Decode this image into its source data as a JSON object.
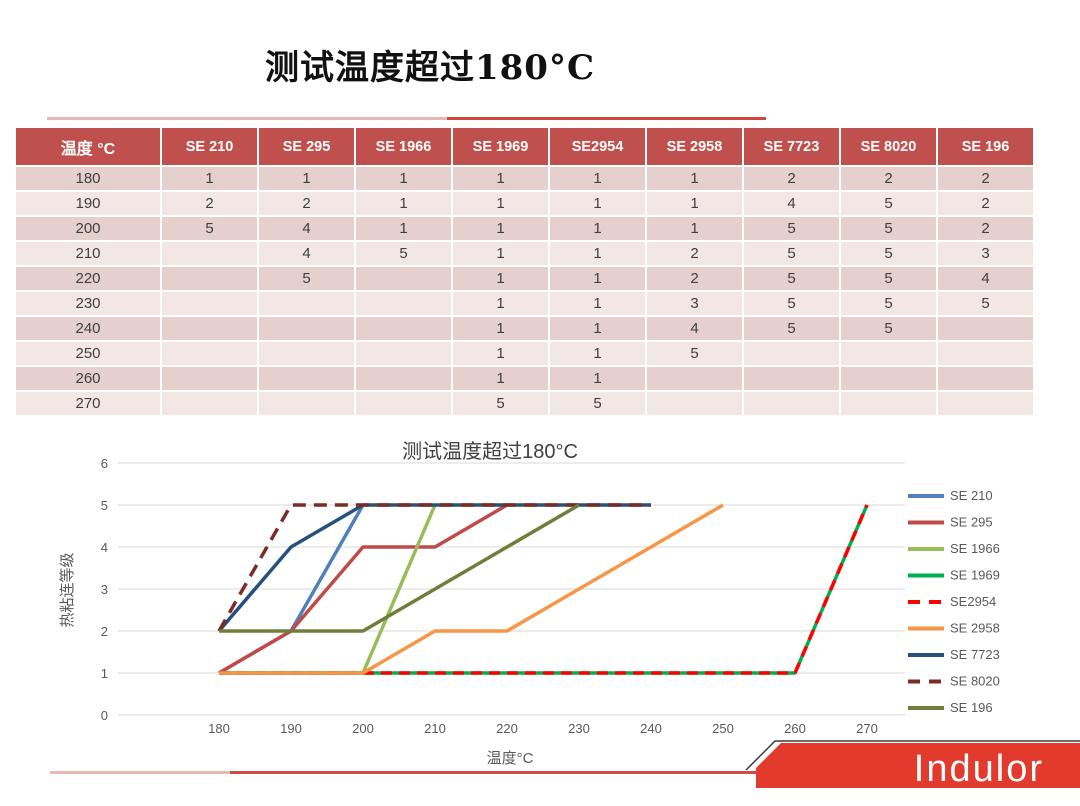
{
  "slide": {
    "title": "测试温度超过180°C",
    "logo_text": "Indulor"
  },
  "table": {
    "headers": [
      "温度 °C",
      "SE 210",
      "SE 295",
      "SE 1966",
      "SE 1969",
      "SE2954",
      "SE 2958",
      "SE 7723",
      "SE 8020",
      "SE 196"
    ],
    "rows": [
      [
        "180",
        "1",
        "1",
        "1",
        "1",
        "1",
        "1",
        "2",
        "2",
        "2"
      ],
      [
        "190",
        "2",
        "2",
        "1",
        "1",
        "1",
        "1",
        "4",
        "5",
        "2"
      ],
      [
        "200",
        "5",
        "4",
        "1",
        "1",
        "1",
        "1",
        "5",
        "5",
        "2"
      ],
      [
        "210",
        "",
        "4",
        "5",
        "1",
        "1",
        "2",
        "5",
        "5",
        "3"
      ],
      [
        "220",
        "",
        "5",
        "",
        "1",
        "1",
        "2",
        "5",
        "5",
        "4"
      ],
      [
        "230",
        "",
        "",
        "",
        "1",
        "1",
        "3",
        "5",
        "5",
        "5"
      ],
      [
        "240",
        "",
        "",
        "",
        "1",
        "1",
        "4",
        "5",
        "5",
        ""
      ],
      [
        "250",
        "",
        "",
        "",
        "1",
        "1",
        "5",
        "",
        "",
        ""
      ],
      [
        "260",
        "",
        "",
        "",
        "1",
        "1",
        "",
        "",
        "",
        ""
      ],
      [
        "270",
        "",
        "",
        "",
        "5",
        "5",
        "",
        "",
        "",
        ""
      ]
    ]
  },
  "chart_data": {
    "type": "line",
    "title": "测试温度超过180°C",
    "xlabel": "温度°C",
    "ylabel": "热粘连等级",
    "x": [
      180,
      190,
      200,
      210,
      220,
      230,
      240,
      250,
      260,
      270
    ],
    "yticks": [
      0,
      1,
      2,
      3,
      4,
      5,
      6
    ],
    "ylim": [
      0,
      6
    ],
    "grid": true,
    "legend_position": "right",
    "gridline_color": "#D9D9D9",
    "series": [
      {
        "name": "SE 210",
        "color": "#4F81BD",
        "dash": null,
        "values": [
          1,
          2,
          5,
          null,
          null,
          null,
          null,
          null,
          null,
          null
        ]
      },
      {
        "name": "SE 295",
        "color": "#BE4B48",
        "dash": null,
        "values": [
          1,
          2,
          4,
          4,
          5,
          null,
          null,
          null,
          null,
          null
        ]
      },
      {
        "name": "SE 1966",
        "color": "#9BBB59",
        "dash": null,
        "values": [
          1,
          1,
          1,
          5,
          null,
          null,
          null,
          null,
          null,
          null
        ]
      },
      {
        "name": "SE 1969",
        "color": "#00B050",
        "dash": null,
        "values": [
          1,
          1,
          1,
          1,
          1,
          1,
          1,
          1,
          1,
          5
        ]
      },
      {
        "name": "SE2954",
        "color": "#FF0000",
        "dash": "11 7",
        "values": [
          1,
          1,
          1,
          1,
          1,
          1,
          1,
          1,
          1,
          5
        ]
      },
      {
        "name": "SE 2958",
        "color": "#F79646",
        "dash": null,
        "values": [
          1,
          1,
          1,
          2,
          2,
          3,
          4,
          5,
          null,
          null
        ]
      },
      {
        "name": "SE 7723",
        "color": "#27517B",
        "dash": null,
        "values": [
          2,
          4,
          5,
          5,
          5,
          5,
          5,
          null,
          null,
          null
        ]
      },
      {
        "name": "SE 8020",
        "color": "#7B2C25",
        "dash": "13 8",
        "values": [
          2,
          5,
          5,
          5,
          5,
          5,
          5,
          null,
          null,
          null
        ]
      },
      {
        "name": "SE 196",
        "color": "#6F7F3A",
        "dash": null,
        "values": [
          2,
          2,
          2,
          3,
          4,
          5,
          null,
          null,
          null,
          null
        ]
      }
    ],
    "accent_colors": {
      "table_header": "#C0504D",
      "row_odd": "#E6D0CE",
      "row_even": "#F2E7E5",
      "rule_light": "#E6B9B8",
      "rule_dark": "#CE4842",
      "logo_red": "#E23B2E"
    }
  }
}
